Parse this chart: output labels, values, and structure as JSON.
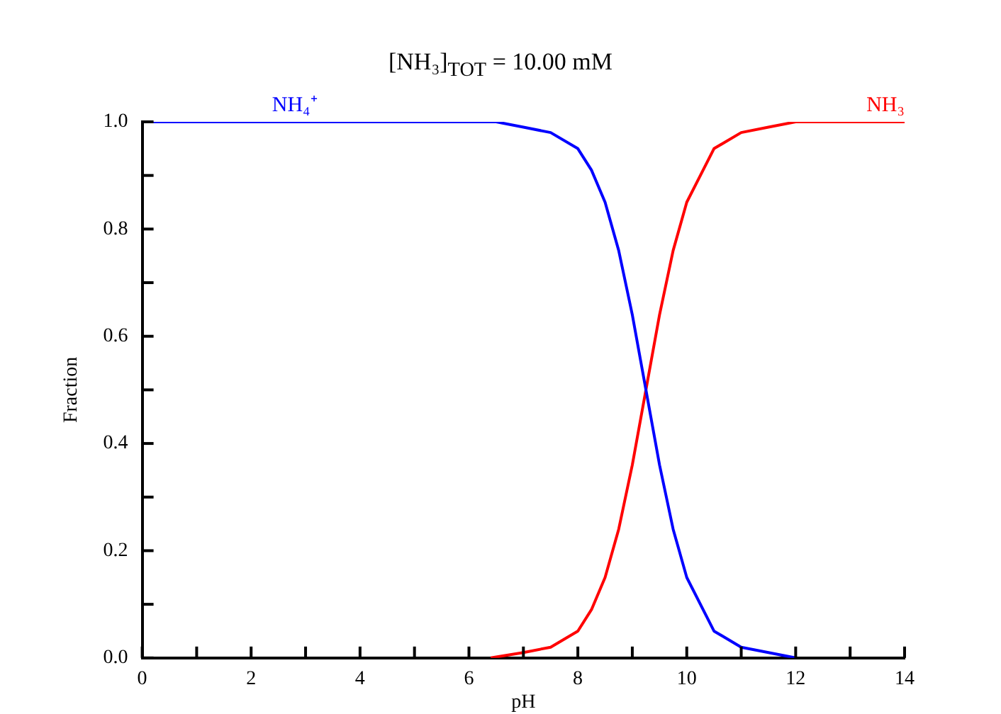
{
  "chart_data": {
    "type": "line",
    "title": "[NH₃]$_{TOT}$ =   10.00 mM",
    "xlabel": "pH",
    "ylabel": "Fraction",
    "xlim": [
      0,
      14
    ],
    "ylim": [
      0,
      1
    ],
    "xticks": [
      0,
      {
        "value": 1,
        "label": null
      },
      2,
      {
        "value": 3,
        "label": null
      },
      4,
      {
        "value": 5,
        "label": null
      },
      6,
      {
        "value": 7,
        "label": null
      },
      8,
      {
        "value": 9,
        "label": null
      },
      10,
      {
        "value": 11,
        "label": null
      },
      12,
      {
        "value": 13,
        "label": null
      },
      14
    ],
    "yticks": [
      {
        "value": 0,
        "label": "0.0"
      },
      {
        "value": 0.1,
        "label": null
      },
      0.2,
      {
        "value": 0.3,
        "label": null
      },
      0.4,
      {
        "value": 0.5,
        "label": null
      },
      0.6,
      {
        "value": 0.7,
        "label": null
      },
      0.8,
      {
        "value": 0.9,
        "label": null
      },
      {
        "value": 1,
        "label": "1.0"
      }
    ],
    "series": [
      {
        "name": "NH₄⁺",
        "color": "#0000ff",
        "x": [
          0,
          6,
          6.5,
          7,
          7.5,
          8,
          8.25,
          8.5,
          8.75,
          9,
          9.25,
          9.5,
          9.75,
          10,
          10.5,
          11,
          11.5,
          12
        ],
        "values": [
          1.0,
          1.0,
          1.0,
          0.99,
          0.98,
          0.95,
          0.91,
          0.85,
          0.76,
          0.64,
          0.5,
          0.36,
          0.24,
          0.15,
          0.05,
          0.02,
          0.01,
          0.0
        ]
      },
      {
        "name": "NH₃",
        "color": "#ff0000",
        "x": [
          6.4,
          7,
          7.5,
          8,
          8.25,
          8.5,
          8.75,
          9,
          9.25,
          9.5,
          9.75,
          10,
          10.5,
          11,
          11.5,
          12,
          14
        ],
        "values": [
          0.0,
          0.01,
          0.02,
          0.05,
          0.09,
          0.15,
          0.24,
          0.36,
          0.5,
          0.64,
          0.76,
          0.85,
          0.95,
          0.98,
          0.99,
          1.0,
          1.0
        ]
      }
    ]
  }
}
